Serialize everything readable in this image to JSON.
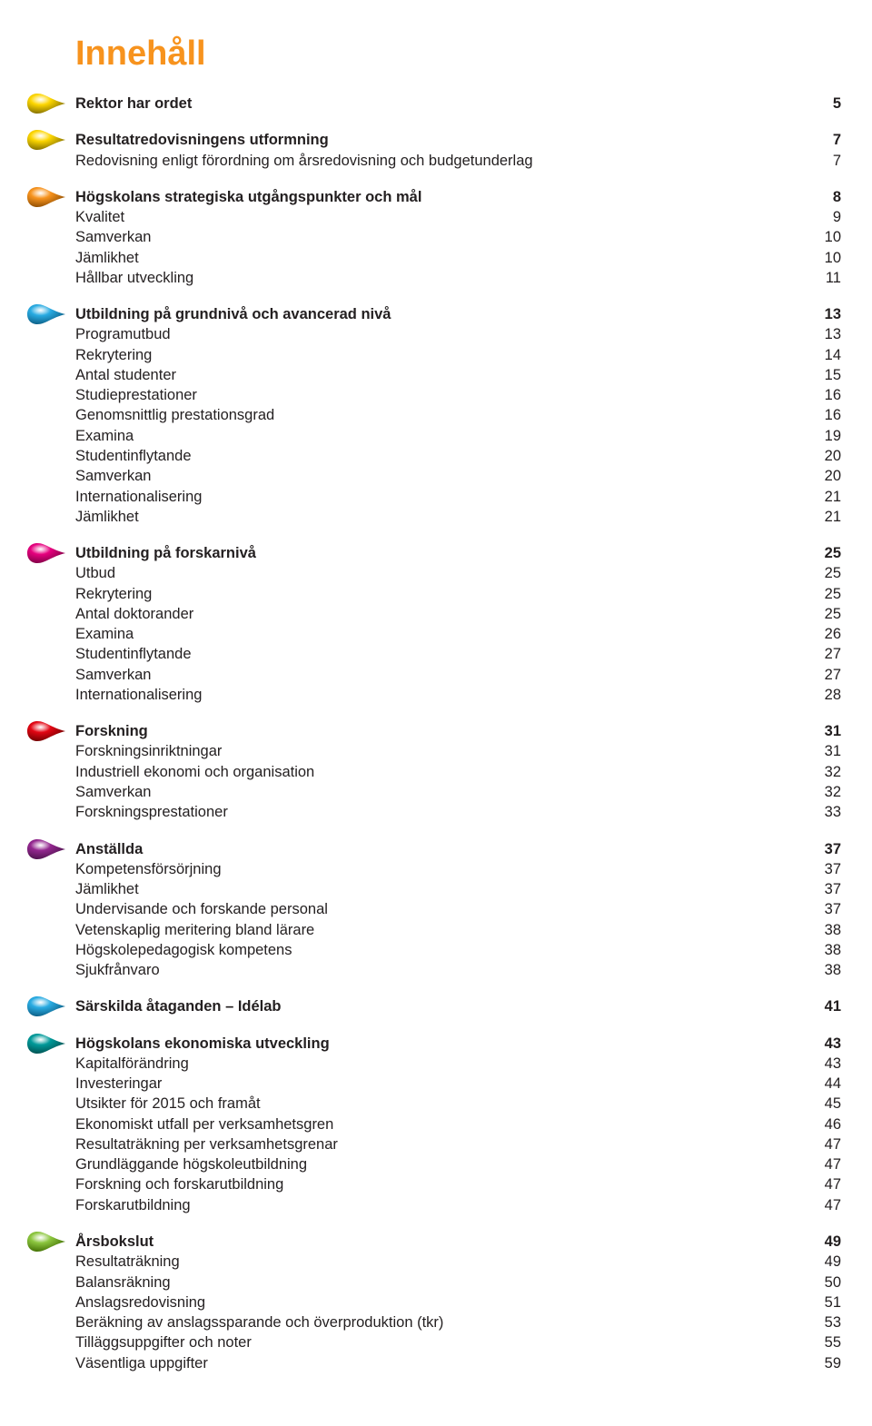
{
  "title": "Innehåll",
  "title_color": "#f7931e",
  "text_color": "#231f20",
  "bullet_defs": {
    "yellow": {
      "fill": "#fdd600",
      "dark": "#7c6a00"
    },
    "orange": {
      "fill": "#f7931e",
      "dark": "#8a4a00"
    },
    "cyan": {
      "fill": "#29abe2",
      "dark": "#0b5a80"
    },
    "magenta": {
      "fill": "#e6007e",
      "dark": "#7a0043"
    },
    "red": {
      "fill": "#e30613",
      "dark": "#6a0000"
    },
    "purple": {
      "fill": "#93278f",
      "dark": "#4a124a"
    },
    "teal": {
      "fill": "#009999",
      "dark": "#004d4d"
    },
    "green": {
      "fill": "#8cc63f",
      "dark": "#3e6b00"
    }
  },
  "sections": [
    {
      "bullet": "yellow",
      "heading": {
        "label": "Rektor har ordet",
        "page": "5"
      },
      "items": []
    },
    {
      "bullet": "yellow",
      "heading": {
        "label": "Resultatredovisningens utformning",
        "page": "7"
      },
      "items": [
        {
          "label": "Redovisning enligt förordning om årsredovisning och budgetunderlag",
          "page": "7"
        }
      ]
    },
    {
      "bullet": "orange",
      "heading": {
        "label": "Högskolans strategiska utgångspunkter och mål",
        "page": "8"
      },
      "items": [
        {
          "label": "Kvalitet",
          "page": "9"
        },
        {
          "label": "Samverkan",
          "page": "10"
        },
        {
          "label": "Jämlikhet",
          "page": "10"
        },
        {
          "label": "Hållbar utveckling",
          "page": "11"
        }
      ]
    },
    {
      "bullet": "cyan",
      "heading": {
        "label": "Utbildning på grundnivå och avancerad nivå",
        "page": "13"
      },
      "items": [
        {
          "label": "Programutbud",
          "page": "13"
        },
        {
          "label": "Rekrytering",
          "page": "14"
        },
        {
          "label": "Antal studenter",
          "page": "15"
        },
        {
          "label": "Studieprestationer",
          "page": "16"
        },
        {
          "label": "Genomsnittlig prestationsgrad",
          "page": "16"
        },
        {
          "label": "Examina",
          "page": "19"
        },
        {
          "label": "Studentinflytande",
          "page": "20"
        },
        {
          "label": "Samverkan",
          "page": "20"
        },
        {
          "label": "Internationalisering",
          "page": "21"
        },
        {
          "label": "Jämlikhet",
          "page": "21"
        }
      ]
    },
    {
      "bullet": "magenta",
      "heading": {
        "label": "Utbildning på forskarnivå",
        "page": "25"
      },
      "items": [
        {
          "label": "Utbud",
          "page": "25"
        },
        {
          "label": "Rekrytering",
          "page": "25"
        },
        {
          "label": "Antal doktorander",
          "page": "25"
        },
        {
          "label": "Examina",
          "page": "26"
        },
        {
          "label": "Studentinflytande",
          "page": "27"
        },
        {
          "label": "Samverkan",
          "page": "27"
        },
        {
          "label": "Internationalisering",
          "page": "28"
        }
      ]
    },
    {
      "bullet": "red",
      "heading": {
        "label": "Forskning",
        "page": "31"
      },
      "items": [
        {
          "label": "Forskningsinriktningar",
          "page": "31"
        },
        {
          "label": "Industriell ekonomi och organisation",
          "page": "32"
        },
        {
          "label": "Samverkan",
          "page": "32"
        },
        {
          "label": "Forskningsprestationer",
          "page": "33"
        }
      ]
    },
    {
      "bullet": "purple",
      "heading": {
        "label": "Anställda",
        "page": "37"
      },
      "items": [
        {
          "label": "Kompetensförsörjning",
          "page": "37"
        },
        {
          "label": "Jämlikhet",
          "page": "37"
        },
        {
          "label": "Undervisande och forskande personal",
          "page": "37"
        },
        {
          "label": "Vetenskaplig meritering bland lärare",
          "page": "38"
        },
        {
          "label": "Högskolepedagogisk kompetens",
          "page": "38"
        },
        {
          "label": "Sjukfrånvaro",
          "page": "38"
        }
      ]
    },
    {
      "bullet": "cyan",
      "heading": {
        "label": "Särskilda åtaganden – Idélab",
        "page": "41"
      },
      "items": []
    },
    {
      "bullet": "teal",
      "heading": {
        "label": "Högskolans ekonomiska utveckling",
        "page": "43"
      },
      "items": [
        {
          "label": "Kapitalförändring",
          "page": "43"
        },
        {
          "label": "Investeringar",
          "page": "44"
        },
        {
          "label": "Utsikter för 2015 och framåt",
          "page": "45"
        },
        {
          "label": "Ekonomiskt utfall per verksamhetsgren",
          "page": "46"
        },
        {
          "label": "Resultaträkning per verksamhetsgrenar",
          "page": "47"
        },
        {
          "label": "Grundläggande högskoleutbildning",
          "page": "47"
        },
        {
          "label": "Forskning och forskarutbildning",
          "page": "47"
        },
        {
          "label": "Forskarutbildning",
          "page": "47"
        }
      ]
    },
    {
      "bullet": "green",
      "heading": {
        "label": "Årsbokslut",
        "page": "49"
      },
      "items": [
        {
          "label": "Resultaträkning",
          "page": "49"
        },
        {
          "label": "Balansräkning",
          "page": "50"
        },
        {
          "label": "Anslagsredovisning",
          "page": "51"
        },
        {
          "label": "Beräkning av anslagssparande och överproduktion (tkr)",
          "page": "53"
        },
        {
          "label": "Tilläggsuppgifter och noter",
          "page": "55"
        },
        {
          "label": "Väsentliga uppgifter",
          "page": "59"
        }
      ]
    }
  ]
}
